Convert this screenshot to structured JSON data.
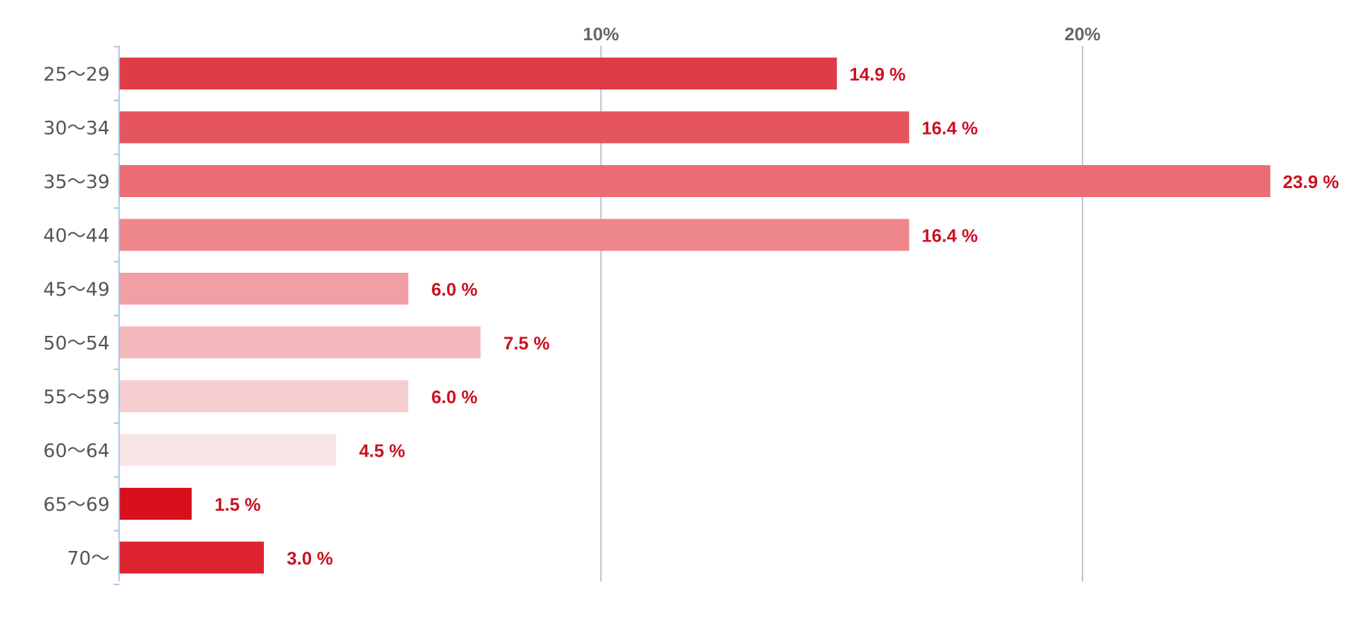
{
  "chart_data": {
    "type": "bar",
    "orientation": "horizontal",
    "categories": [
      "25〜29",
      "30〜34",
      "35〜39",
      "40〜44",
      "45〜49",
      "50〜54",
      "55〜59",
      "60〜64",
      "65〜69",
      "70〜"
    ],
    "values": [
      14.9,
      16.4,
      23.9,
      16.4,
      6.0,
      7.5,
      6.0,
      4.5,
      1.5,
      3.0
    ],
    "value_labels": [
      "14.9 %",
      "16.4 %",
      "23.9 %",
      "16.4 %",
      "6.0 %",
      "7.5 %",
      "6.0 %",
      "4.5 %",
      "1.5 %",
      "3.0 %"
    ],
    "bar_colors": [
      "#e03c48",
      "#e55560",
      "#ea6c74",
      "#ed878c",
      "#f0a0a5",
      "#f3b8bb",
      "#f6ced1",
      "#fae5e6",
      "#d8101d",
      "#dd2430"
    ],
    "x_ticks": [
      10,
      20
    ],
    "x_tick_labels": [
      "10%",
      "20%"
    ],
    "xlim": [
      0,
      24
    ],
    "grid": "vertical",
    "title": "",
    "xlabel": "",
    "ylabel": "",
    "colors": {
      "value_text": "#cc1020",
      "tick_text": "#666666",
      "category_text": "#555555",
      "gridline": "#a8b0b8",
      "axis": "#a8c4dc"
    }
  }
}
